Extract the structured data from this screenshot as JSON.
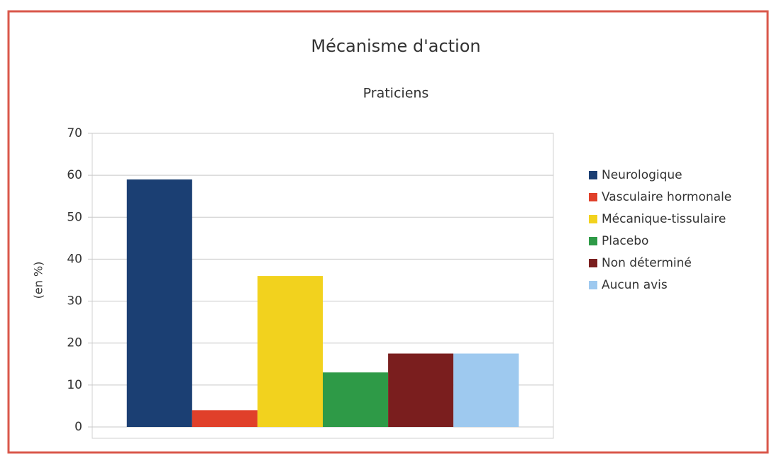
{
  "chart_data": {
    "type": "bar",
    "title": "Mécanisme d'action",
    "subtitle": "Praticiens",
    "y_label": "(en %)",
    "categories": [
      null
    ],
    "series": [
      {
        "name": "Neurologique",
        "color": "#1b3f73",
        "values": [
          59
        ]
      },
      {
        "name": "Vasculaire hormonale",
        "color": "#e0402a",
        "values": [
          4
        ]
      },
      {
        "name": "Mécanique-tissulaire",
        "color": "#f2d21e",
        "values": [
          36
        ]
      },
      {
        "name": "Placebo",
        "color": "#2e9a47",
        "values": [
          13
        ]
      },
      {
        "name": "Non déterminé",
        "color": "#7a1e1e",
        "values": [
          17.5
        ]
      },
      {
        "name": "Aucun avis",
        "color": "#9ec9ef",
        "values": [
          17.5
        ]
      }
    ],
    "ylim": [
      0,
      70
    ],
    "yticks": [
      0,
      10,
      20,
      30,
      40,
      50,
      60,
      70
    ],
    "grid": true,
    "legend": "right"
  }
}
